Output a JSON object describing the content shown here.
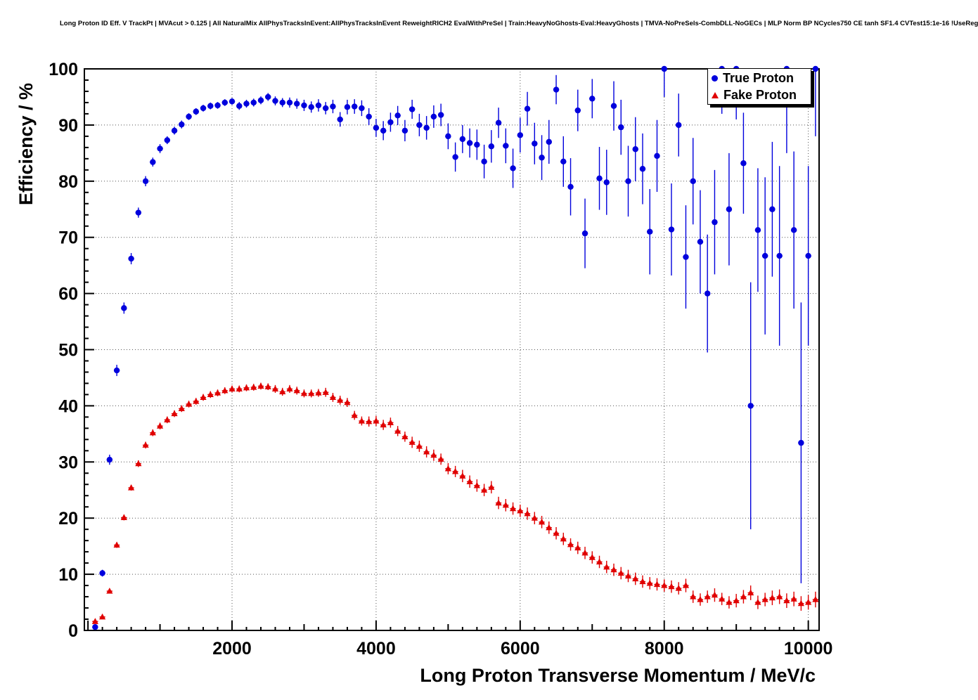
{
  "chart_data": {
    "type": "scatter",
    "title": "Long Proton ID Eff. V TrackPt | MVAcut > 0.125 | All NaturalMix AllPhysTracksInEvent:AllPhysTracksInEvent ReweightRICH2 EvalWithPreSel | Train:HeavyNoGhosts-Eval:HeavyGhosts | TMVA-NoPreSels-CombDLL-NoGECs | MLP Norm BP NCycles750 CE tanh SF1.4 CVTest15:1e-16 !UseReg",
    "xlabel": "Long Proton Transverse Momentum / MeV/c",
    "ylabel": "Efficiency / %",
    "xlim": [
      -50,
      10150
    ],
    "ylim": [
      0,
      100
    ],
    "xticks": [
      2000,
      4000,
      6000,
      8000,
      10000
    ],
    "yticks": [
      0,
      10,
      20,
      30,
      40,
      50,
      60,
      70,
      80,
      90,
      100
    ],
    "grid": true,
    "legend_position": "top-right",
    "series": [
      {
        "name": "True Proton",
        "marker": "circle",
        "color": "#0000dd",
        "xerr": 40,
        "points": [
          [
            100,
            0.6,
            0.4
          ],
          [
            200,
            10.2,
            0.6
          ],
          [
            300,
            30.4,
            0.9
          ],
          [
            400,
            46.3,
            1.0
          ],
          [
            500,
            57.4,
            1.0
          ],
          [
            600,
            66.2,
            1.0
          ],
          [
            700,
            74.4,
            0.9
          ],
          [
            800,
            80.0,
            0.9
          ],
          [
            900,
            83.4,
            0.8
          ],
          [
            1000,
            85.8,
            0.8
          ],
          [
            1100,
            87.3,
            0.7
          ],
          [
            1200,
            89.0,
            0.7
          ],
          [
            1300,
            90.1,
            0.7
          ],
          [
            1400,
            91.5,
            0.6
          ],
          [
            1500,
            92.4,
            0.6
          ],
          [
            1600,
            93.0,
            0.6
          ],
          [
            1700,
            93.4,
            0.6
          ],
          [
            1800,
            93.5,
            0.6
          ],
          [
            1900,
            94.0,
            0.6
          ],
          [
            2000,
            94.2,
            0.6
          ],
          [
            2100,
            93.4,
            0.7
          ],
          [
            2200,
            93.8,
            0.7
          ],
          [
            2300,
            94.0,
            0.7
          ],
          [
            2400,
            94.4,
            0.7
          ],
          [
            2500,
            95.0,
            0.7
          ],
          [
            2600,
            94.3,
            0.8
          ],
          [
            2700,
            94.0,
            0.8
          ],
          [
            2800,
            94.0,
            0.9
          ],
          [
            2900,
            93.8,
            0.9
          ],
          [
            3000,
            93.5,
            1.0
          ],
          [
            3100,
            93.2,
            1.0
          ],
          [
            3200,
            93.5,
            1.1
          ],
          [
            3300,
            93.0,
            1.1
          ],
          [
            3400,
            93.3,
            1.2
          ],
          [
            3500,
            91.0,
            1.3
          ],
          [
            3600,
            93.2,
            1.3
          ],
          [
            3700,
            93.3,
            1.3
          ],
          [
            3800,
            93.0,
            1.4
          ],
          [
            3900,
            91.5,
            1.5
          ],
          [
            4000,
            89.5,
            1.6
          ],
          [
            4100,
            89.0,
            1.7
          ],
          [
            4200,
            90.5,
            1.7
          ],
          [
            4300,
            91.7,
            1.7
          ],
          [
            4400,
            89.0,
            1.9
          ],
          [
            4500,
            92.8,
            1.7
          ],
          [
            4600,
            90.0,
            2.0
          ],
          [
            4700,
            89.5,
            2.1
          ],
          [
            4800,
            91.5,
            2.0
          ],
          [
            4900,
            91.8,
            2.0
          ],
          [
            5000,
            88.0,
            2.3
          ],
          [
            5100,
            84.3,
            2.6
          ],
          [
            5200,
            87.5,
            2.5
          ],
          [
            5300,
            86.8,
            2.6
          ],
          [
            5400,
            86.5,
            2.7
          ],
          [
            5500,
            83.5,
            3.0
          ],
          [
            5600,
            86.2,
            2.9
          ],
          [
            5700,
            90.4,
            2.7
          ],
          [
            5800,
            86.3,
            3.1
          ],
          [
            5900,
            82.3,
            3.5
          ],
          [
            6000,
            88.2,
            3.1
          ],
          [
            6100,
            92.9,
            3.0
          ],
          [
            6200,
            86.7,
            3.7
          ],
          [
            6300,
            84.2,
            4.0
          ],
          [
            6400,
            87.0,
            3.9
          ],
          [
            6500,
            96.3,
            2.6
          ],
          [
            6600,
            83.5,
            4.5
          ],
          [
            6700,
            79.0,
            5.1
          ],
          [
            6800,
            92.6,
            3.7
          ],
          [
            6900,
            70.7,
            6.2
          ],
          [
            7000,
            94.7,
            3.5
          ],
          [
            7100,
            80.5,
            5.6
          ],
          [
            7200,
            79.8,
            5.8
          ],
          [
            7300,
            93.4,
            4.4
          ],
          [
            7400,
            89.6,
            4.9
          ],
          [
            7500,
            80.0,
            6.3
          ],
          [
            7600,
            85.7,
            5.7
          ],
          [
            7700,
            82.2,
            6.3
          ],
          [
            7800,
            71.0,
            7.6
          ],
          [
            7900,
            84.5,
            6.4
          ],
          [
            8000,
            100.0,
            5.0
          ],
          [
            8100,
            71.4,
            8.2
          ],
          [
            8200,
            90.0,
            5.6
          ],
          [
            8300,
            66.5,
            9.2
          ],
          [
            8400,
            80.0,
            7.7
          ],
          [
            8500,
            69.2,
            9.2
          ],
          [
            8600,
            60.0,
            10.5
          ],
          [
            8700,
            72.7,
            9.3
          ],
          [
            8800,
            100.0,
            8.0
          ],
          [
            8900,
            75.0,
            10.0
          ],
          [
            9000,
            100.0,
            9.0
          ],
          [
            9100,
            83.2,
            9.0
          ],
          [
            9200,
            40.0,
            22.0
          ],
          [
            9300,
            71.3,
            11.0
          ],
          [
            9400,
            66.7,
            14.0
          ],
          [
            9500,
            75.0,
            12.0
          ],
          [
            9600,
            66.7,
            16.0
          ],
          [
            9700,
            100.0,
            15.0
          ],
          [
            9800,
            71.3,
            14.0
          ],
          [
            9900,
            33.4,
            25.0
          ],
          [
            10000,
            66.7,
            16.0
          ],
          [
            10100,
            100.0,
            12.0
          ]
        ]
      },
      {
        "name": "Fake Proton",
        "marker": "triangle",
        "color": "#e00000",
        "xerr": 40,
        "points": [
          [
            100,
            1.6,
            0.3
          ],
          [
            200,
            2.4,
            0.3
          ],
          [
            300,
            7.0,
            0.4
          ],
          [
            400,
            15.2,
            0.5
          ],
          [
            500,
            20.1,
            0.5
          ],
          [
            600,
            25.4,
            0.5
          ],
          [
            700,
            29.7,
            0.6
          ],
          [
            800,
            33.0,
            0.6
          ],
          [
            900,
            35.2,
            0.6
          ],
          [
            1000,
            36.4,
            0.6
          ],
          [
            1100,
            37.5,
            0.6
          ],
          [
            1200,
            38.6,
            0.6
          ],
          [
            1300,
            39.5,
            0.6
          ],
          [
            1400,
            40.3,
            0.6
          ],
          [
            1500,
            40.8,
            0.6
          ],
          [
            1600,
            41.5,
            0.6
          ],
          [
            1700,
            42.0,
            0.6
          ],
          [
            1800,
            42.3,
            0.6
          ],
          [
            1900,
            42.7,
            0.6
          ],
          [
            2000,
            43.0,
            0.6
          ],
          [
            2100,
            43.0,
            0.6
          ],
          [
            2200,
            43.2,
            0.6
          ],
          [
            2300,
            43.3,
            0.6
          ],
          [
            2400,
            43.5,
            0.6
          ],
          [
            2500,
            43.4,
            0.6
          ],
          [
            2600,
            43.0,
            0.7
          ],
          [
            2700,
            42.5,
            0.7
          ],
          [
            2800,
            43.0,
            0.7
          ],
          [
            2900,
            42.7,
            0.7
          ],
          [
            3000,
            42.2,
            0.7
          ],
          [
            3100,
            42.2,
            0.7
          ],
          [
            3200,
            42.3,
            0.7
          ],
          [
            3300,
            42.4,
            0.8
          ],
          [
            3400,
            41.5,
            0.8
          ],
          [
            3500,
            41.0,
            0.8
          ],
          [
            3600,
            40.6,
            0.8
          ],
          [
            3700,
            38.3,
            0.8
          ],
          [
            3800,
            37.3,
            0.8
          ],
          [
            3900,
            37.2,
            0.9
          ],
          [
            4000,
            37.3,
            0.9
          ],
          [
            4100,
            36.6,
            0.9
          ],
          [
            4200,
            37.0,
            0.9
          ],
          [
            4300,
            35.5,
            0.9
          ],
          [
            4400,
            34.5,
            0.9
          ],
          [
            4500,
            33.5,
            1.0
          ],
          [
            4600,
            32.8,
            1.0
          ],
          [
            4700,
            31.8,
            1.0
          ],
          [
            4800,
            31.2,
            1.0
          ],
          [
            4900,
            30.5,
            1.0
          ],
          [
            5000,
            28.8,
            1.0
          ],
          [
            5100,
            28.3,
            1.0
          ],
          [
            5200,
            27.5,
            1.1
          ],
          [
            5300,
            26.5,
            1.1
          ],
          [
            5400,
            25.8,
            1.1
          ],
          [
            5500,
            25.0,
            1.1
          ],
          [
            5600,
            25.5,
            1.1
          ],
          [
            5700,
            22.7,
            1.1
          ],
          [
            5800,
            22.3,
            1.1
          ],
          [
            5900,
            21.7,
            1.1
          ],
          [
            6000,
            21.3,
            1.1
          ],
          [
            6100,
            20.8,
            1.1
          ],
          [
            6200,
            20.0,
            1.1
          ],
          [
            6300,
            19.3,
            1.1
          ],
          [
            6400,
            18.3,
            1.1
          ],
          [
            6500,
            17.3,
            1.1
          ],
          [
            6600,
            16.3,
            1.1
          ],
          [
            6700,
            15.3,
            1.1
          ],
          [
            6800,
            14.7,
            1.1
          ],
          [
            6900,
            13.8,
            1.1
          ],
          [
            7000,
            13.0,
            1.1
          ],
          [
            7100,
            12.2,
            1.1
          ],
          [
            7200,
            11.3,
            1.1
          ],
          [
            7300,
            10.8,
            1.1
          ],
          [
            7400,
            10.2,
            1.1
          ],
          [
            7500,
            9.7,
            1.1
          ],
          [
            7600,
            9.2,
            1.1
          ],
          [
            7700,
            8.7,
            1.1
          ],
          [
            7800,
            8.4,
            1.1
          ],
          [
            7900,
            8.2,
            1.1
          ],
          [
            8000,
            8.0,
            1.1
          ],
          [
            8100,
            7.8,
            1.1
          ],
          [
            8200,
            7.5,
            1.1
          ],
          [
            8300,
            8.0,
            1.2
          ],
          [
            8400,
            6.0,
            1.1
          ],
          [
            8500,
            5.5,
            1.1
          ],
          [
            8600,
            6.0,
            1.1
          ],
          [
            8700,
            6.3,
            1.2
          ],
          [
            8800,
            5.6,
            1.1
          ],
          [
            8900,
            5.0,
            1.1
          ],
          [
            9000,
            5.3,
            1.2
          ],
          [
            9100,
            6.0,
            1.2
          ],
          [
            9200,
            6.7,
            1.3
          ],
          [
            9300,
            5.0,
            1.2
          ],
          [
            9400,
            5.5,
            1.2
          ],
          [
            9500,
            5.8,
            1.3
          ],
          [
            9600,
            6.0,
            1.3
          ],
          [
            9700,
            5.3,
            1.3
          ],
          [
            9800,
            5.6,
            1.3
          ],
          [
            9900,
            4.8,
            1.3
          ],
          [
            10000,
            5.0,
            1.3
          ],
          [
            10100,
            5.5,
            1.4
          ]
        ]
      }
    ]
  },
  "legend": {
    "items": [
      {
        "label": "True Proton",
        "marker": "circle-icon",
        "color": "#0000dd"
      },
      {
        "label": "Fake Proton",
        "marker": "triangle-icon",
        "color": "#e00000"
      }
    ]
  }
}
